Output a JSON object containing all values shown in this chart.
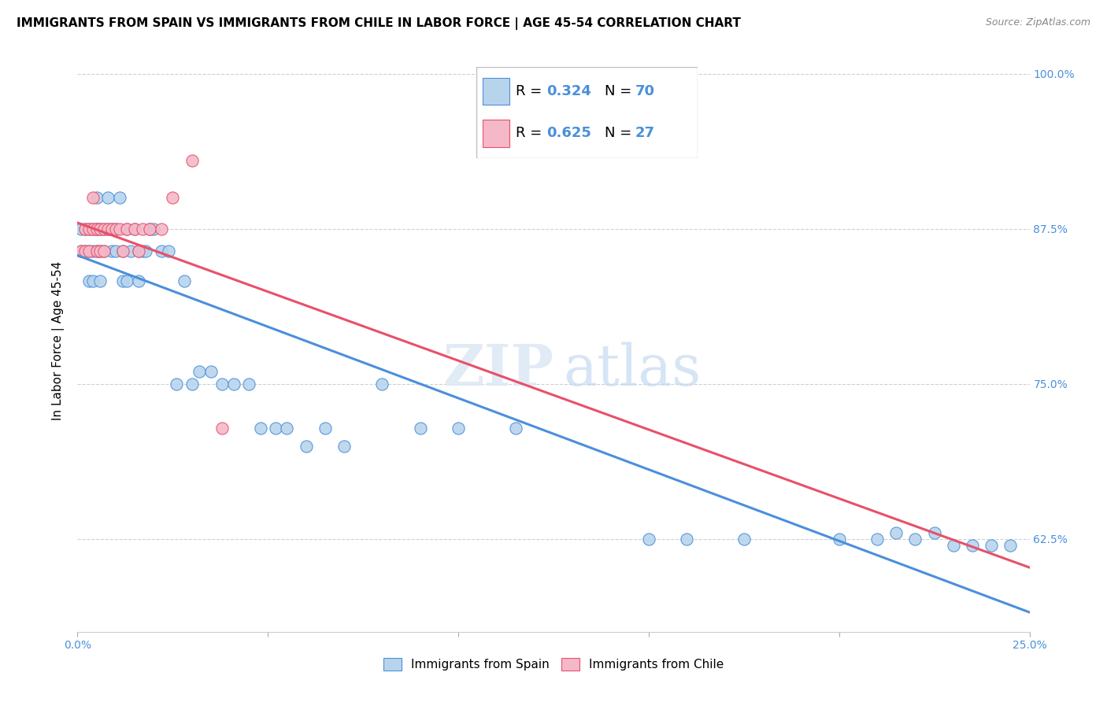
{
  "title": "IMMIGRANTS FROM SPAIN VS IMMIGRANTS FROM CHILE IN LABOR FORCE | AGE 45-54 CORRELATION CHART",
  "source": "Source: ZipAtlas.com",
  "ylabel": "In Labor Force | Age 45-54",
  "xlim": [
    0.0,
    0.25
  ],
  "ylim": [
    0.55,
    1.02
  ],
  "spain_R": 0.324,
  "spain_N": 70,
  "chile_R": 0.625,
  "chile_N": 27,
  "spain_color": "#b8d4ed",
  "chile_color": "#f5b8c8",
  "spain_line_color": "#4a90d9",
  "chile_line_color": "#e8506a",
  "spain_scatter_x": [
    0.001,
    0.001,
    0.002,
    0.002,
    0.003,
    0.003,
    0.003,
    0.004,
    0.004,
    0.004,
    0.005,
    0.005,
    0.005,
    0.005,
    0.006,
    0.006,
    0.006,
    0.007,
    0.007,
    0.008,
    0.008,
    0.009,
    0.009,
    0.01,
    0.01,
    0.011,
    0.012,
    0.012,
    0.013,
    0.013,
    0.014,
    0.015,
    0.016,
    0.016,
    0.017,
    0.018,
    0.019,
    0.02,
    0.022,
    0.024,
    0.026,
    0.028,
    0.03,
    0.032,
    0.035,
    0.038,
    0.041,
    0.045,
    0.048,
    0.052,
    0.055,
    0.06,
    0.065,
    0.07,
    0.08,
    0.09,
    0.1,
    0.115,
    0.15,
    0.16,
    0.175,
    0.2,
    0.21,
    0.215,
    0.22,
    0.225,
    0.23,
    0.235,
    0.24,
    0.245
  ],
  "spain_scatter_y": [
    0.875,
    0.857,
    0.875,
    0.857,
    0.875,
    0.857,
    0.833,
    0.875,
    0.857,
    0.833,
    0.875,
    0.857,
    0.875,
    0.9,
    0.875,
    0.857,
    0.833,
    0.875,
    0.857,
    0.875,
    0.9,
    0.857,
    0.875,
    0.875,
    0.857,
    0.9,
    0.833,
    0.857,
    0.875,
    0.833,
    0.857,
    0.875,
    0.857,
    0.833,
    0.857,
    0.857,
    0.875,
    0.875,
    0.857,
    0.857,
    0.75,
    0.833,
    0.75,
    0.76,
    0.76,
    0.75,
    0.75,
    0.75,
    0.714,
    0.714,
    0.714,
    0.7,
    0.714,
    0.7,
    0.75,
    0.714,
    0.714,
    0.714,
    0.625,
    0.625,
    0.625,
    0.625,
    0.625,
    0.63,
    0.625,
    0.63,
    0.62,
    0.62,
    0.62,
    0.62
  ],
  "chile_scatter_x": [
    0.001,
    0.002,
    0.002,
    0.003,
    0.003,
    0.004,
    0.004,
    0.005,
    0.005,
    0.006,
    0.006,
    0.007,
    0.007,
    0.008,
    0.009,
    0.01,
    0.011,
    0.012,
    0.013,
    0.015,
    0.016,
    0.017,
    0.019,
    0.022,
    0.025,
    0.03,
    0.038
  ],
  "chile_scatter_y": [
    0.857,
    0.875,
    0.857,
    0.875,
    0.857,
    0.875,
    0.9,
    0.857,
    0.875,
    0.875,
    0.857,
    0.875,
    0.857,
    0.875,
    0.875,
    0.875,
    0.875,
    0.857,
    0.875,
    0.875,
    0.857,
    0.875,
    0.875,
    0.875,
    0.9,
    0.93,
    0.714
  ],
  "watermark_zip": "ZIP",
  "watermark_atlas": "atlas",
  "background_color": "#ffffff",
  "grid_color": "#d0d0d0",
  "title_fontsize": 11,
  "axis_label_fontsize": 11,
  "tick_fontsize": 10,
  "legend_fontsize": 13,
  "x_tick_positions": [
    0.0,
    0.05,
    0.1,
    0.15,
    0.2,
    0.25
  ],
  "x_tick_labels": [
    "0.0%",
    "",
    "",
    "",
    "",
    "25.0%"
  ],
  "y_tick_positions": [
    0.625,
    0.75,
    0.875,
    1.0
  ],
  "y_tick_labels": [
    "62.5%",
    "75.0%",
    "87.5%",
    "100.0%"
  ]
}
